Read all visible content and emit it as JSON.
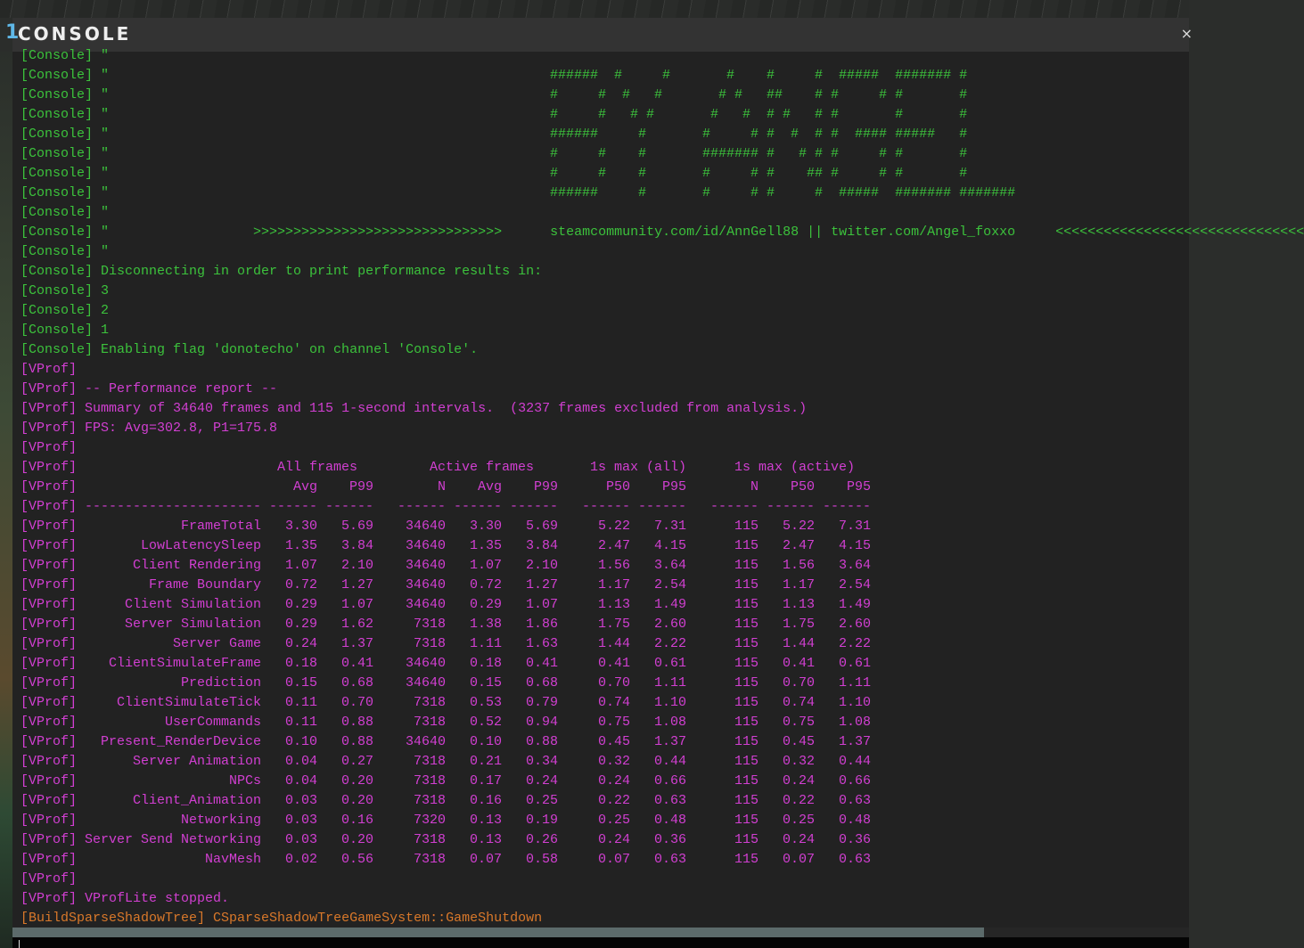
{
  "window": {
    "number": "1",
    "title": "CONSOLE",
    "close_label": "×"
  },
  "colors": {
    "console": "#3cc23c",
    "vprof": "#d23fd2",
    "build": "#d9782a",
    "background": "#222222"
  },
  "console_lines": [
    {
      "channel": "[Console]",
      "text": " \"",
      "art": ""
    },
    {
      "channel": "[Console]",
      "text": " \"",
      "art": "######  #     #       #    #     #  #####  ####### #"
    },
    {
      "channel": "[Console]",
      "text": " \"",
      "art": "#     #  #   #       # #   ##    # #     # #       #"
    },
    {
      "channel": "[Console]",
      "text": " \"",
      "art": "#     #   # #       #   #  # #   # #       #       #"
    },
    {
      "channel": "[Console]",
      "text": " \"",
      "art": "######     #       #     # #  #  # #  #### #####   #"
    },
    {
      "channel": "[Console]",
      "text": " \"",
      "art": "#     #    #       ####### #   # # #     # #       #"
    },
    {
      "channel": "[Console]",
      "text": " \"",
      "art": "#     #    #       #     # #    ## #     # #       #"
    },
    {
      "channel": "[Console]",
      "text": " \"",
      "art": "######     #       #     # #     #  #####  ####### #######"
    },
    {
      "channel": "[Console]",
      "text": " \"",
      "art": ""
    },
    {
      "channel": "[Console]",
      "text": " \"                  >>>>>>>>>>>>>>>>>>>>>>>>>>>>>>>      steamcommunity.com/id/AnnGell88 || twitter.com/Angel_foxxo     <<<<<<<<<<<<<<<<<<<<<<<<<<<<<<<",
      "art": ""
    },
    {
      "channel": "[Console]",
      "text": " \"",
      "art": ""
    },
    {
      "channel": "[Console]",
      "text": " Disconnecting in order to print performance results in:",
      "art": ""
    },
    {
      "channel": "[Console]",
      "text": " 3",
      "art": ""
    },
    {
      "channel": "[Console]",
      "text": " 2",
      "art": ""
    },
    {
      "channel": "[Console]",
      "text": " 1",
      "art": ""
    },
    {
      "channel": "[Console]",
      "text": " Enabling flag 'donotecho' on channel 'Console'.",
      "art": ""
    }
  ],
  "vprof_intro": [
    {
      "channel": "[VProf]",
      "text": ""
    },
    {
      "channel": "[VProf]",
      "text": " -- Performance report --"
    },
    {
      "channel": "[VProf]",
      "text": " Summary of 34640 frames and 115 1-second intervals.  (3237 frames excluded from analysis.)"
    },
    {
      "channel": "[VProf]",
      "text": " FPS: Avg=302.8, P1=175.8"
    },
    {
      "channel": "[VProf]",
      "text": ""
    }
  ],
  "perf_table": {
    "channel": "[VProf]",
    "groups": [
      "All frames",
      "Active frames",
      "1s max (all)",
      "1s max (active)"
    ],
    "columns": [
      "Avg",
      "P99",
      "N",
      "Avg",
      "P99",
      "P50",
      "P95",
      "N",
      "P50",
      "P95"
    ],
    "separators": [
      "----------------------",
      "------",
      "------",
      "------",
      "------",
      "------",
      "------",
      "------",
      "------",
      "------",
      "------"
    ],
    "rows": [
      {
        "name": "FrameTotal",
        "values": [
          "3.30",
          "5.69",
          "34640",
          "3.30",
          "5.69",
          "5.22",
          "7.31",
          "115",
          "5.22",
          "7.31"
        ]
      },
      {
        "name": "LowLatencySleep",
        "values": [
          "1.35",
          "3.84",
          "34640",
          "1.35",
          "3.84",
          "2.47",
          "4.15",
          "115",
          "2.47",
          "4.15"
        ]
      },
      {
        "name": "Client Rendering",
        "values": [
          "1.07",
          "2.10",
          "34640",
          "1.07",
          "2.10",
          "1.56",
          "3.64",
          "115",
          "1.56",
          "3.64"
        ]
      },
      {
        "name": "Frame Boundary",
        "values": [
          "0.72",
          "1.27",
          "34640",
          "0.72",
          "1.27",
          "1.17",
          "2.54",
          "115",
          "1.17",
          "2.54"
        ]
      },
      {
        "name": "Client Simulation",
        "values": [
          "0.29",
          "1.07",
          "34640",
          "0.29",
          "1.07",
          "1.13",
          "1.49",
          "115",
          "1.13",
          "1.49"
        ]
      },
      {
        "name": "Server Simulation",
        "values": [
          "0.29",
          "1.62",
          "7318",
          "1.38",
          "1.86",
          "1.75",
          "2.60",
          "115",
          "1.75",
          "2.60"
        ]
      },
      {
        "name": "Server Game",
        "values": [
          "0.24",
          "1.37",
          "7318",
          "1.11",
          "1.63",
          "1.44",
          "2.22",
          "115",
          "1.44",
          "2.22"
        ]
      },
      {
        "name": "ClientSimulateFrame",
        "values": [
          "0.18",
          "0.41",
          "34640",
          "0.18",
          "0.41",
          "0.41",
          "0.61",
          "115",
          "0.41",
          "0.61"
        ]
      },
      {
        "name": "Prediction",
        "values": [
          "0.15",
          "0.68",
          "34640",
          "0.15",
          "0.68",
          "0.70",
          "1.11",
          "115",
          "0.70",
          "1.11"
        ]
      },
      {
        "name": "ClientSimulateTick",
        "values": [
          "0.11",
          "0.70",
          "7318",
          "0.53",
          "0.79",
          "0.74",
          "1.10",
          "115",
          "0.74",
          "1.10"
        ]
      },
      {
        "name": "UserCommands",
        "values": [
          "0.11",
          "0.88",
          "7318",
          "0.52",
          "0.94",
          "0.75",
          "1.08",
          "115",
          "0.75",
          "1.08"
        ]
      },
      {
        "name": "Present_RenderDevice",
        "values": [
          "0.10",
          "0.88",
          "34640",
          "0.10",
          "0.88",
          "0.45",
          "1.37",
          "115",
          "0.45",
          "1.37"
        ]
      },
      {
        "name": "Server Animation",
        "values": [
          "0.04",
          "0.27",
          "7318",
          "0.21",
          "0.34",
          "0.32",
          "0.44",
          "115",
          "0.32",
          "0.44"
        ]
      },
      {
        "name": "NPCs",
        "values": [
          "0.04",
          "0.20",
          "7318",
          "0.17",
          "0.24",
          "0.24",
          "0.66",
          "115",
          "0.24",
          "0.66"
        ]
      },
      {
        "name": "Client_Animation",
        "values": [
          "0.03",
          "0.20",
          "7318",
          "0.16",
          "0.25",
          "0.22",
          "0.63",
          "115",
          "0.22",
          "0.63"
        ]
      },
      {
        "name": "Networking",
        "values": [
          "0.03",
          "0.16",
          "7320",
          "0.13",
          "0.19",
          "0.25",
          "0.48",
          "115",
          "0.25",
          "0.48"
        ]
      },
      {
        "name": "Server Send Networking",
        "values": [
          "0.03",
          "0.20",
          "7318",
          "0.13",
          "0.26",
          "0.24",
          "0.36",
          "115",
          "0.24",
          "0.36"
        ]
      },
      {
        "name": "NavMesh",
        "values": [
          "0.02",
          "0.56",
          "7318",
          "0.07",
          "0.58",
          "0.07",
          "0.63",
          "115",
          "0.07",
          "0.63"
        ]
      }
    ]
  },
  "vprof_outro": [
    {
      "channel": "[VProf]",
      "text": ""
    },
    {
      "channel": "[VProf]",
      "text": " VProfLite stopped."
    }
  ],
  "build_line": {
    "channel": "[BuildSparseShadowTree]",
    "text": " CSparseShadowTreeGameSystem::GameShutdown"
  },
  "command_input": {
    "value": ""
  }
}
